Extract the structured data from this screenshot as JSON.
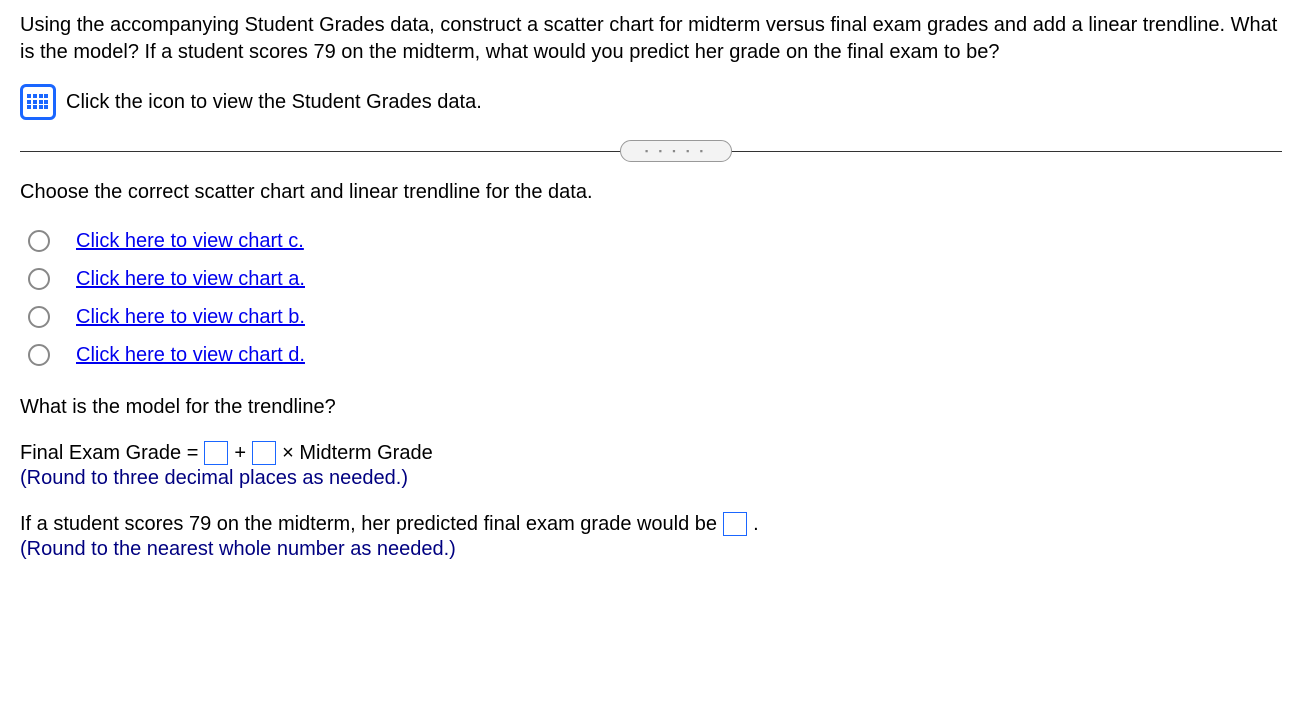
{
  "question": {
    "prompt": "Using the accompanying Student Grades data, construct a scatter chart for midterm versus final exam grades and add a linear trendline. What is the model? If a student scores 79 on the midterm, what would you predict her grade on the final exam to be?",
    "data_link_label": "Click the icon to view the Student Grades data."
  },
  "chart_choice": {
    "instruction": "Choose the correct scatter chart and linear trendline for the data.",
    "options": [
      {
        "label": "Click here to view chart c."
      },
      {
        "label": "Click here to view chart a."
      },
      {
        "label": "Click here to view chart b."
      },
      {
        "label": "Click here to view chart d."
      }
    ]
  },
  "model": {
    "question": "What is the model for the trendline?",
    "lhs": "Final Exam Grade =",
    "plus": "+",
    "rhs_suffix": "× Midterm Grade",
    "round_note": "(Round to three decimal places as needed.)",
    "intercept_value": "",
    "slope_value": ""
  },
  "prediction": {
    "prefix": "If a student scores 79 on the midterm, her predicted final exam grade would be",
    "period": ".",
    "round_note": "(Round to the nearest whole number as needed.)",
    "value": ""
  },
  "style": {
    "link_color": "#0000ee",
    "box_border_color": "#1a66ff",
    "dark_blue_text": "#000080"
  }
}
